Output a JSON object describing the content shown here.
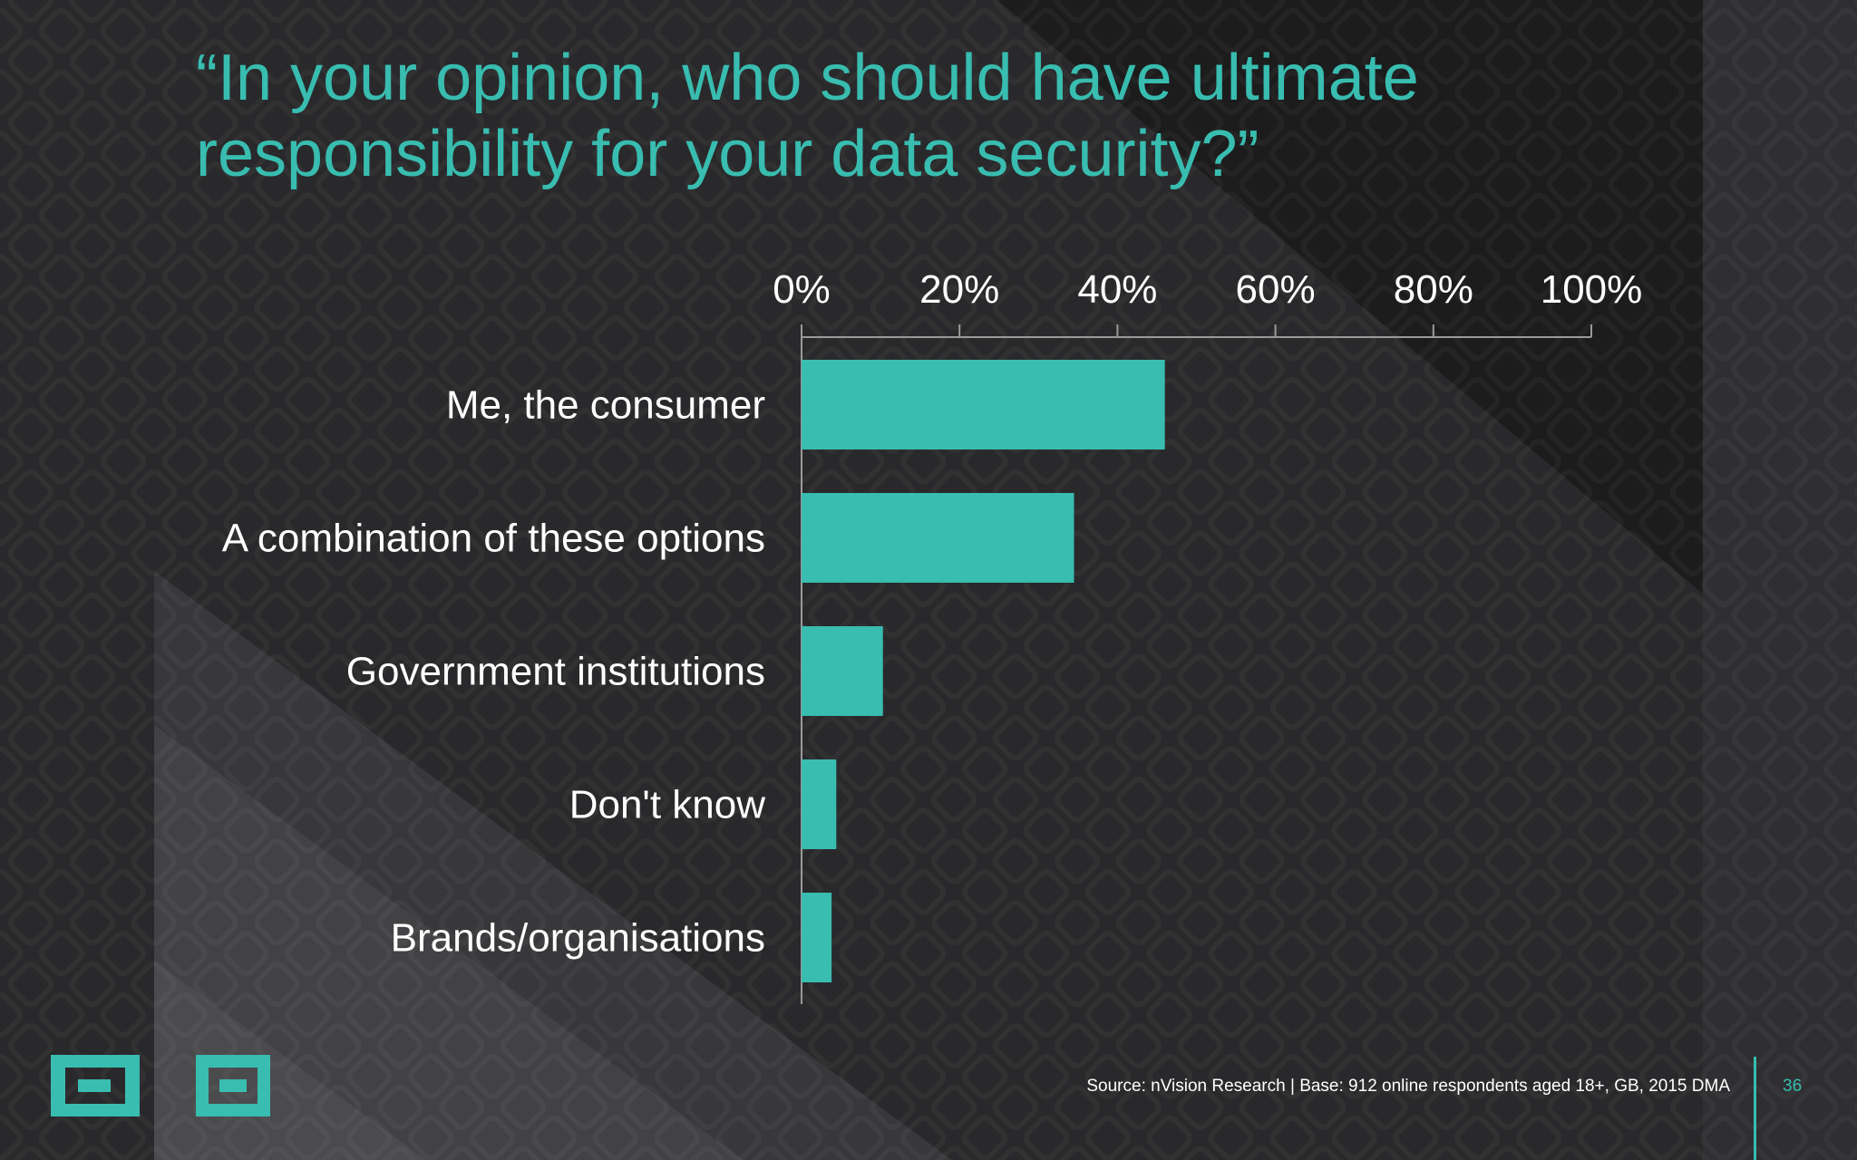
{
  "header": {
    "title_line1": "“In your opinion, who should have ultimate",
    "title_line2": "responsibility for your data security?”"
  },
  "footer": {
    "source": "Source: nVision Research | Base: 912 online respondents aged 18+, GB, 2015 DMA",
    "page_number": "36"
  },
  "colors": {
    "accent": "#38bdb0",
    "background": "#2a2a2c",
    "text": "#ffffff",
    "axis": "#9a9a9a"
  },
  "icons": [
    "logo-mark-icon",
    "logo-mark-icon"
  ],
  "chart_data": {
    "type": "bar",
    "orientation": "horizontal",
    "categories": [
      "Me, the consumer",
      "A combination of these options",
      "Government institutions",
      "Don't know",
      "Brands/organisations"
    ],
    "values": [
      46,
      34.5,
      10.3,
      4.4,
      3.8
    ],
    "unit": "%",
    "xlim": [
      0,
      100
    ],
    "ticks": [
      "0%",
      "20%",
      "40%",
      "60%",
      "80%",
      "100%"
    ],
    "tick_values": [
      0,
      20,
      40,
      60,
      80,
      100
    ],
    "axis_position": "top",
    "grid": false,
    "legend": "none",
    "bar_color": "#38bdb0"
  }
}
